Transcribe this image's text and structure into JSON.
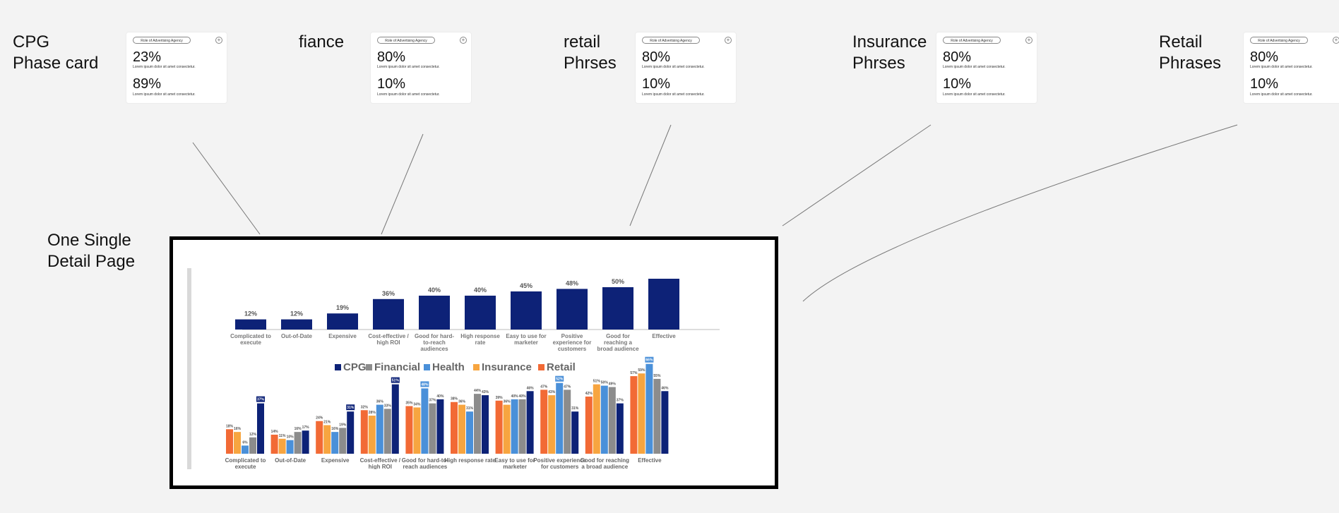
{
  "labels": {
    "cpg": "CPG\nPhase card",
    "finance": "fiance",
    "retail1": "retail\nPhrses",
    "insurance": "Insurance\nPhrses",
    "retail2": "Retail\nPhrases",
    "detail": "One Single\nDetail Page"
  },
  "cards": [
    {
      "pill": "Role of Advertising Agency",
      "v1": "23%",
      "v2": "89%",
      "desc": "Lorem ipsum dolor sit amet consectetur."
    },
    {
      "pill": "Role of Advertising Agency",
      "v1": "80%",
      "v2": "10%",
      "desc": "Lorem ipsum dolor sit amet consectetur."
    },
    {
      "pill": "Role of Advertising Agency",
      "v1": "80%",
      "v2": "10%",
      "desc": "Lorem ipsum dolor sit amet consectetur."
    },
    {
      "pill": "Role of Advertising Agency",
      "v1": "80%",
      "v2": "10%",
      "desc": "Lorem ipsum dolor sit amet consectetur."
    },
    {
      "pill": "Role of Advertising Agency",
      "v1": "80%",
      "v2": "10%",
      "desc": "Lorem ipsum dolor sit amet consectetur."
    }
  ],
  "chart_data": [
    {
      "type": "bar",
      "categories": [
        [
          "Complicated to",
          "execute"
        ],
        [
          "Out-of-Date"
        ],
        [
          "Expensive"
        ],
        [
          "Cost-effective /",
          "high ROI"
        ],
        [
          "Good for hard-",
          "to-reach",
          "audiences"
        ],
        [
          "High response",
          "rate"
        ],
        [
          "Easy to use for",
          "marketer"
        ],
        [
          "Positive",
          "experience for",
          "customers"
        ],
        [
          "Good for",
          "reaching a",
          "broad audience"
        ],
        [
          "Effective"
        ]
      ],
      "values": [
        12,
        12,
        19,
        36,
        40,
        40,
        45,
        48,
        50,
        60
      ],
      "value_labels": [
        "12%",
        "12%",
        "19%",
        "36%",
        "40%",
        "40%",
        "45%",
        "48%",
        "50%",
        ""
      ],
      "ylim": [
        0,
        60
      ],
      "color": "#0d2277"
    },
    {
      "type": "bar",
      "categories": [
        [
          "Complicated to",
          "execute"
        ],
        [
          "Out-of-Date"
        ],
        [
          "Expensive"
        ],
        [
          "Cost-effective /",
          "high ROI"
        ],
        [
          "Good for hard-to-",
          "reach audiences"
        ],
        [
          "High response rate"
        ],
        [
          "Easy to use for",
          "marketer"
        ],
        [
          "Positive experience",
          "for customers"
        ],
        [
          "Good for reaching",
          "a broad audience"
        ],
        [
          "Effective"
        ]
      ],
      "legend": [
        "CPG",
        "Financial",
        "Health",
        "Insurance",
        "Retail"
      ],
      "legend_colors": [
        "#0d2277",
        "#8c8c8c",
        "#4a90d9",
        "#f7a540",
        "#f26a35"
      ],
      "bar_order": [
        "Retail",
        "Insurance",
        "Health",
        "Financial",
        "CPG"
      ],
      "series": [
        {
          "name": "Retail",
          "values": [
            18,
            14,
            24,
            32,
            35,
            38,
            39,
            47,
            42,
            57
          ]
        },
        {
          "name": "Insurance",
          "values": [
            16,
            11,
            21,
            28,
            34,
            36,
            36,
            43,
            51,
            59
          ]
        },
        {
          "name": "Health",
          "values": [
            6,
            10,
            16,
            36,
            48,
            31,
            40,
            52,
            50,
            66
          ]
        },
        {
          "name": "Financial",
          "values": [
            12,
            16,
            19,
            33,
            37,
            44,
            40,
            47,
            49,
            55
          ]
        },
        {
          "name": "CPG",
          "values": [
            37,
            17,
            31,
            51,
            40,
            43,
            46,
            31,
            37,
            46
          ]
        }
      ],
      "highlighted": [
        {
          "category": 0,
          "series": "CPG"
        },
        {
          "category": 2,
          "series": "CPG"
        },
        {
          "category": 3,
          "series": "CPG"
        },
        {
          "category": 4,
          "series": "Health"
        },
        {
          "category": 7,
          "series": "Health"
        },
        {
          "category": 9,
          "series": "Health"
        }
      ],
      "ylim": [
        0,
        70
      ]
    }
  ]
}
